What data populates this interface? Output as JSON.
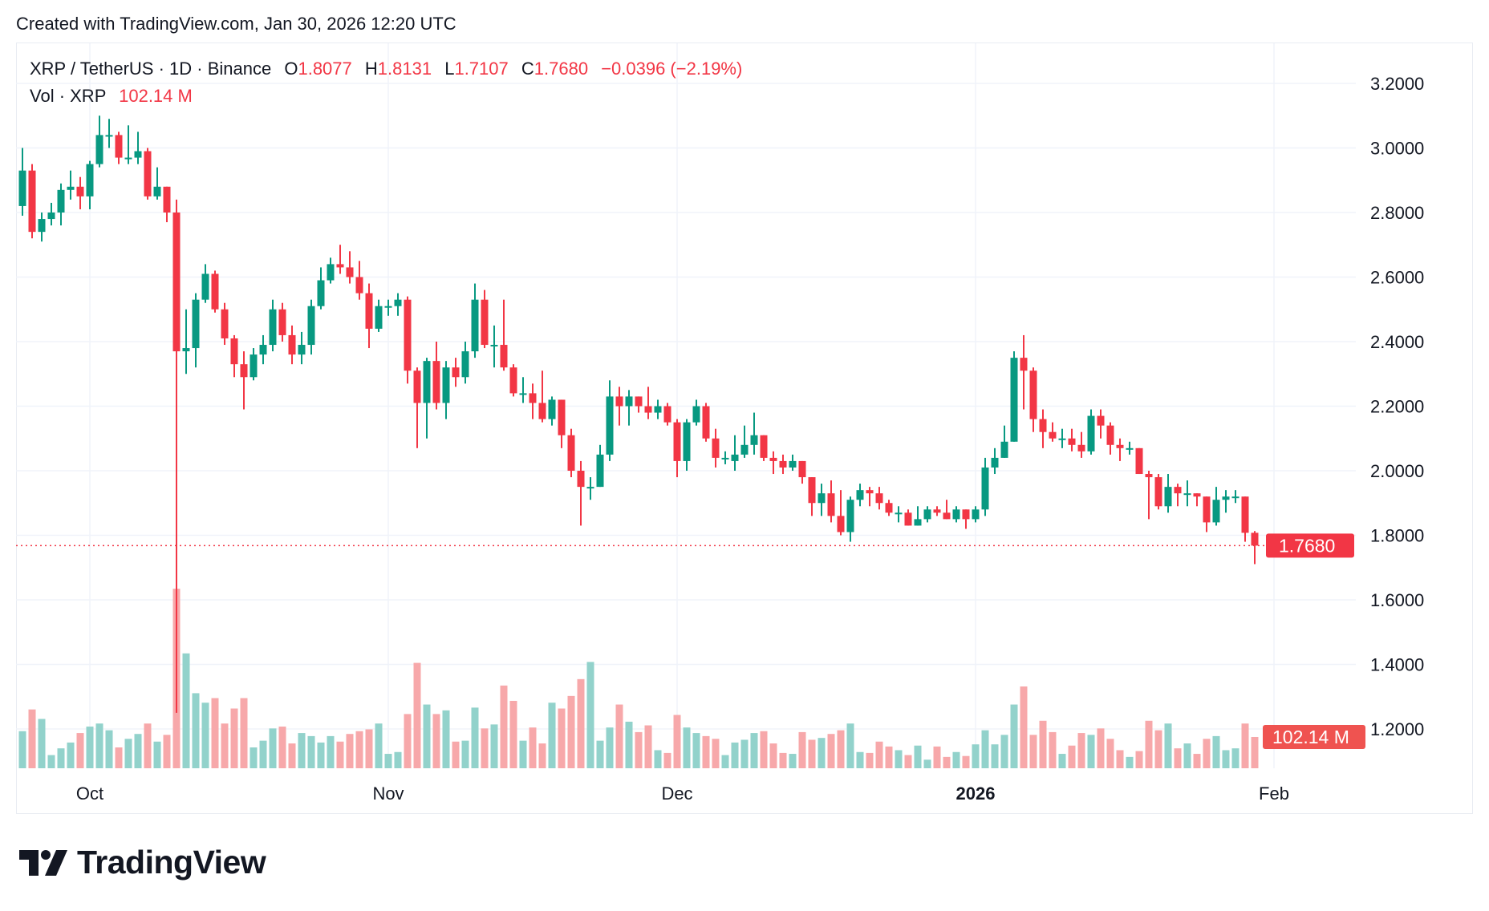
{
  "header": {
    "created": "Created with TradingView.com, Jan 30, 2026 12:20 UTC"
  },
  "legend": {
    "symbol": "XRP / TetherUS · 1D · Binance",
    "o_label": "O",
    "o_value": "1.8077",
    "h_label": "H",
    "h_value": "1.8131",
    "l_label": "L",
    "l_value": "1.7107",
    "c_label": "C",
    "c_value": "1.7680",
    "change": "−0.0396 (−2.19%)",
    "vol_label": "Vol · XRP",
    "vol_value": "102.14 M"
  },
  "logo": {
    "text": "TradingView"
  },
  "colors": {
    "up": "#089981",
    "down": "#f23645",
    "vol_up": "#92d2cb",
    "vol_down": "#f7a8aa",
    "grid": "#f0f3fa"
  },
  "chart_data": {
    "type": "candlestick",
    "title": "XRP / TetherUS · 1D · Binance",
    "ylim": [
      1.2,
      3.2
    ],
    "y_ticks": [
      "3.2000",
      "3.0000",
      "2.8000",
      "2.6000",
      "2.4000",
      "2.2000",
      "2.0000",
      "1.8000",
      "1.6000",
      "1.4000",
      "1.2000"
    ],
    "x_ticks": [
      {
        "label": "Oct",
        "date": "2025-10-01",
        "bold": false
      },
      {
        "label": "Nov",
        "date": "2025-11-01",
        "bold": false
      },
      {
        "label": "Dec",
        "date": "2025-12-01",
        "bold": false
      },
      {
        "label": "2026",
        "date": "2026-01-01",
        "bold": true
      },
      {
        "label": "Feb",
        "date": "2026-02-01",
        "bold": false
      }
    ],
    "grid": true,
    "last_price": {
      "value": 1.768,
      "label": "1.7680"
    },
    "last_volume": {
      "value": 102.14,
      "label": "102.14 M"
    },
    "volume_unit": "M",
    "columns": [
      "date",
      "open",
      "high",
      "low",
      "close",
      "volume"
    ],
    "candles": [
      [
        "2025-09-24",
        2.82,
        3.0,
        2.79,
        2.93,
        121
      ],
      [
        "2025-09-25",
        2.93,
        2.95,
        2.72,
        2.74,
        192
      ],
      [
        "2025-09-26",
        2.74,
        2.8,
        2.71,
        2.78,
        161
      ],
      [
        "2025-09-27",
        2.78,
        2.83,
        2.76,
        2.8,
        43
      ],
      [
        "2025-09-28",
        2.8,
        2.89,
        2.76,
        2.87,
        65
      ],
      [
        "2025-09-29",
        2.87,
        2.93,
        2.84,
        2.88,
        84
      ],
      [
        "2025-09-30",
        2.88,
        2.91,
        2.81,
        2.85,
        115
      ],
      [
        "2025-10-01",
        2.85,
        2.96,
        2.81,
        2.95,
        136
      ],
      [
        "2025-10-02",
        2.95,
        3.1,
        2.94,
        3.04,
        146
      ],
      [
        "2025-10-03",
        3.04,
        3.09,
        3.0,
        3.04,
        124
      ],
      [
        "2025-10-04",
        3.04,
        3.05,
        2.95,
        2.97,
        68
      ],
      [
        "2025-10-05",
        2.97,
        3.07,
        2.95,
        2.97,
        96
      ],
      [
        "2025-10-06",
        2.97,
        3.05,
        2.95,
        2.99,
        112
      ],
      [
        "2025-10-07",
        2.99,
        3.0,
        2.84,
        2.85,
        146
      ],
      [
        "2025-10-08",
        2.85,
        2.94,
        2.84,
        2.88,
        87
      ],
      [
        "2025-10-09",
        2.88,
        2.88,
        2.77,
        2.8,
        109
      ],
      [
        "2025-10-10",
        2.8,
        2.84,
        1.25,
        2.37,
        586
      ],
      [
        "2025-10-11",
        2.37,
        2.5,
        2.3,
        2.38,
        375
      ],
      [
        "2025-10-12",
        2.38,
        2.55,
        2.32,
        2.53,
        245
      ],
      [
        "2025-10-13",
        2.53,
        2.64,
        2.52,
        2.61,
        214
      ],
      [
        "2025-10-14",
        2.61,
        2.62,
        2.49,
        2.5,
        229
      ],
      [
        "2025-10-15",
        2.5,
        2.52,
        2.39,
        2.41,
        146
      ],
      [
        "2025-10-16",
        2.41,
        2.42,
        2.29,
        2.33,
        195
      ],
      [
        "2025-10-17",
        2.33,
        2.37,
        2.19,
        2.29,
        229
      ],
      [
        "2025-10-18",
        2.29,
        2.38,
        2.28,
        2.36,
        68
      ],
      [
        "2025-10-19",
        2.36,
        2.42,
        2.33,
        2.39,
        90
      ],
      [
        "2025-10-20",
        2.39,
        2.53,
        2.37,
        2.5,
        130
      ],
      [
        "2025-10-21",
        2.5,
        2.52,
        2.4,
        2.42,
        136
      ],
      [
        "2025-10-22",
        2.42,
        2.45,
        2.33,
        2.36,
        81
      ],
      [
        "2025-10-23",
        2.36,
        2.43,
        2.33,
        2.39,
        115
      ],
      [
        "2025-10-24",
        2.39,
        2.53,
        2.36,
        2.51,
        105
      ],
      [
        "2025-10-25",
        2.51,
        2.63,
        2.5,
        2.59,
        84
      ],
      [
        "2025-10-26",
        2.59,
        2.66,
        2.58,
        2.64,
        105
      ],
      [
        "2025-10-27",
        2.64,
        2.7,
        2.61,
        2.63,
        87
      ],
      [
        "2025-10-28",
        2.63,
        2.68,
        2.58,
        2.6,
        112
      ],
      [
        "2025-10-29",
        2.6,
        2.65,
        2.53,
        2.55,
        121
      ],
      [
        "2025-10-30",
        2.55,
        2.58,
        2.38,
        2.44,
        127
      ],
      [
        "2025-10-31",
        2.44,
        2.53,
        2.43,
        2.51,
        146
      ],
      [
        "2025-11-01",
        2.51,
        2.53,
        2.48,
        2.51,
        47
      ],
      [
        "2025-11-02",
        2.51,
        2.55,
        2.48,
        2.53,
        53
      ],
      [
        "2025-11-03",
        2.53,
        2.54,
        2.27,
        2.31,
        177
      ],
      [
        "2025-11-04",
        2.31,
        2.32,
        2.07,
        2.21,
        344
      ],
      [
        "2025-11-05",
        2.21,
        2.35,
        2.1,
        2.34,
        208
      ],
      [
        "2025-11-06",
        2.34,
        2.4,
        2.19,
        2.21,
        177
      ],
      [
        "2025-11-07",
        2.21,
        2.34,
        2.16,
        2.32,
        189
      ],
      [
        "2025-11-08",
        2.32,
        2.35,
        2.26,
        2.29,
        87
      ],
      [
        "2025-11-09",
        2.29,
        2.4,
        2.27,
        2.37,
        90
      ],
      [
        "2025-11-10",
        2.37,
        2.58,
        2.35,
        2.53,
        198
      ],
      [
        "2025-11-11",
        2.53,
        2.56,
        2.38,
        2.39,
        130
      ],
      [
        "2025-11-12",
        2.39,
        2.45,
        2.32,
        2.39,
        143
      ],
      [
        "2025-11-13",
        2.39,
        2.53,
        2.31,
        2.32,
        270
      ],
      [
        "2025-11-14",
        2.32,
        2.33,
        2.23,
        2.24,
        220
      ],
      [
        "2025-11-15",
        2.24,
        2.29,
        2.21,
        2.24,
        90
      ],
      [
        "2025-11-16",
        2.24,
        2.27,
        2.16,
        2.21,
        133
      ],
      [
        "2025-11-17",
        2.21,
        2.31,
        2.15,
        2.16,
        81
      ],
      [
        "2025-11-18",
        2.16,
        2.23,
        2.14,
        2.22,
        214
      ],
      [
        "2025-11-19",
        2.22,
        2.22,
        2.07,
        2.11,
        195
      ],
      [
        "2025-11-20",
        2.11,
        2.13,
        1.98,
        2.0,
        236
      ],
      [
        "2025-11-21",
        2.0,
        2.03,
        1.83,
        1.95,
        291
      ],
      [
        "2025-11-22",
        1.95,
        1.98,
        1.91,
        1.95,
        347
      ],
      [
        "2025-11-23",
        1.95,
        2.08,
        1.95,
        2.05,
        90
      ],
      [
        "2025-11-24",
        2.05,
        2.28,
        2.03,
        2.23,
        133
      ],
      [
        "2025-11-25",
        2.23,
        2.26,
        2.14,
        2.2,
        208
      ],
      [
        "2025-11-26",
        2.2,
        2.25,
        2.14,
        2.23,
        152
      ],
      [
        "2025-11-27",
        2.23,
        2.23,
        2.18,
        2.2,
        118
      ],
      [
        "2025-11-28",
        2.2,
        2.26,
        2.16,
        2.18,
        140
      ],
      [
        "2025-11-29",
        2.18,
        2.22,
        2.16,
        2.2,
        59
      ],
      [
        "2025-11-30",
        2.2,
        2.21,
        2.14,
        2.15,
        50
      ],
      [
        "2025-12-01",
        2.15,
        2.16,
        1.98,
        2.03,
        174
      ],
      [
        "2025-12-02",
        2.03,
        2.16,
        2.0,
        2.15,
        133
      ],
      [
        "2025-12-03",
        2.15,
        2.22,
        2.14,
        2.2,
        115
      ],
      [
        "2025-12-04",
        2.2,
        2.21,
        2.09,
        2.1,
        105
      ],
      [
        "2025-12-05",
        2.1,
        2.13,
        2.01,
        2.04,
        96
      ],
      [
        "2025-12-06",
        2.04,
        2.06,
        2.02,
        2.04,
        43
      ],
      [
        "2025-12-07",
        2.03,
        2.11,
        2.0,
        2.05,
        84
      ],
      [
        "2025-12-08",
        2.05,
        2.14,
        2.04,
        2.08,
        93
      ],
      [
        "2025-12-09",
        2.08,
        2.18,
        2.05,
        2.11,
        115
      ],
      [
        "2025-12-10",
        2.11,
        2.11,
        2.03,
        2.04,
        121
      ],
      [
        "2025-12-11",
        2.04,
        2.06,
        1.99,
        2.03,
        81
      ],
      [
        "2025-12-12",
        2.03,
        2.05,
        1.99,
        2.01,
        50
      ],
      [
        "2025-12-13",
        2.01,
        2.05,
        2.0,
        2.03,
        47
      ],
      [
        "2025-12-14",
        2.03,
        2.03,
        1.96,
        1.98,
        118
      ],
      [
        "2025-12-15",
        1.98,
        1.98,
        1.86,
        1.9,
        93
      ],
      [
        "2025-12-16",
        1.9,
        1.96,
        1.86,
        1.93,
        99
      ],
      [
        "2025-12-17",
        1.93,
        1.97,
        1.84,
        1.86,
        112
      ],
      [
        "2025-12-18",
        1.86,
        1.94,
        1.8,
        1.81,
        124
      ],
      [
        "2025-12-19",
        1.81,
        1.92,
        1.78,
        1.91,
        146
      ],
      [
        "2025-12-20",
        1.91,
        1.96,
        1.89,
        1.94,
        53
      ],
      [
        "2025-12-21",
        1.94,
        1.95,
        1.89,
        1.93,
        50
      ],
      [
        "2025-12-22",
        1.93,
        1.95,
        1.88,
        1.9,
        87
      ],
      [
        "2025-12-23",
        1.9,
        1.91,
        1.86,
        1.87,
        71
      ],
      [
        "2025-12-24",
        1.87,
        1.89,
        1.84,
        1.87,
        59
      ],
      [
        "2025-12-25",
        1.87,
        1.88,
        1.83,
        1.83,
        43
      ],
      [
        "2025-12-26",
        1.83,
        1.89,
        1.83,
        1.85,
        74
      ],
      [
        "2025-12-27",
        1.85,
        1.89,
        1.84,
        1.88,
        28
      ],
      [
        "2025-12-28",
        1.88,
        1.89,
        1.86,
        1.87,
        71
      ],
      [
        "2025-12-29",
        1.87,
        1.91,
        1.85,
        1.85,
        37
      ],
      [
        "2025-12-30",
        1.85,
        1.89,
        1.84,
        1.88,
        53
      ],
      [
        "2025-12-31",
        1.88,
        1.88,
        1.82,
        1.85,
        40
      ],
      [
        "2026-01-01",
        1.85,
        1.89,
        1.84,
        1.88,
        78
      ],
      [
        "2026-01-02",
        1.88,
        2.04,
        1.86,
        2.01,
        124
      ],
      [
        "2026-01-03",
        2.01,
        2.07,
        1.99,
        2.04,
        78
      ],
      [
        "2026-01-04",
        2.04,
        2.14,
        2.04,
        2.09,
        109
      ],
      [
        "2026-01-05",
        2.09,
        2.37,
        2.09,
        2.35,
        208
      ],
      [
        "2026-01-06",
        2.35,
        2.42,
        2.19,
        2.31,
        267
      ],
      [
        "2026-01-07",
        2.31,
        2.32,
        2.12,
        2.16,
        109
      ],
      [
        "2026-01-08",
        2.16,
        2.19,
        2.07,
        2.12,
        155
      ],
      [
        "2026-01-09",
        2.12,
        2.15,
        2.09,
        2.1,
        118
      ],
      [
        "2026-01-10",
        2.1,
        2.13,
        2.07,
        2.1,
        47
      ],
      [
        "2026-01-11",
        2.1,
        2.13,
        2.06,
        2.08,
        74
      ],
      [
        "2026-01-12",
        2.08,
        2.12,
        2.04,
        2.06,
        115
      ],
      [
        "2026-01-13",
        2.06,
        2.19,
        2.05,
        2.17,
        109
      ],
      [
        "2026-01-14",
        2.17,
        2.19,
        2.1,
        2.14,
        130
      ],
      [
        "2026-01-15",
        2.14,
        2.15,
        2.05,
        2.08,
        96
      ],
      [
        "2026-01-16",
        2.08,
        2.1,
        2.03,
        2.07,
        59
      ],
      [
        "2026-01-17",
        2.07,
        2.09,
        2.05,
        2.07,
        37
      ],
      [
        "2026-01-18",
        2.07,
        2.07,
        1.99,
        1.99,
        56
      ],
      [
        "2026-01-19",
        1.99,
        2.0,
        1.85,
        1.98,
        155
      ],
      [
        "2026-01-20",
        1.98,
        1.99,
        1.88,
        1.89,
        124
      ],
      [
        "2026-01-21",
        1.89,
        1.99,
        1.87,
        1.95,
        146
      ],
      [
        "2026-01-22",
        1.95,
        1.96,
        1.89,
        1.93,
        65
      ],
      [
        "2026-01-23",
        1.93,
        1.97,
        1.89,
        1.93,
        81
      ],
      [
        "2026-01-24",
        1.93,
        1.93,
        1.89,
        1.92,
        47
      ],
      [
        "2026-01-25",
        1.92,
        1.92,
        1.81,
        1.84,
        96
      ],
      [
        "2026-01-26",
        1.84,
        1.95,
        1.83,
        1.91,
        105
      ],
      [
        "2026-01-27",
        1.91,
        1.94,
        1.87,
        1.92,
        59
      ],
      [
        "2026-01-28",
        1.92,
        1.94,
        1.9,
        1.92,
        65
      ],
      [
        "2026-01-29",
        1.92,
        1.92,
        1.78,
        1.8077,
        146
      ],
      [
        "2026-01-30",
        1.8077,
        1.8131,
        1.7107,
        1.768,
        102.14
      ]
    ]
  }
}
